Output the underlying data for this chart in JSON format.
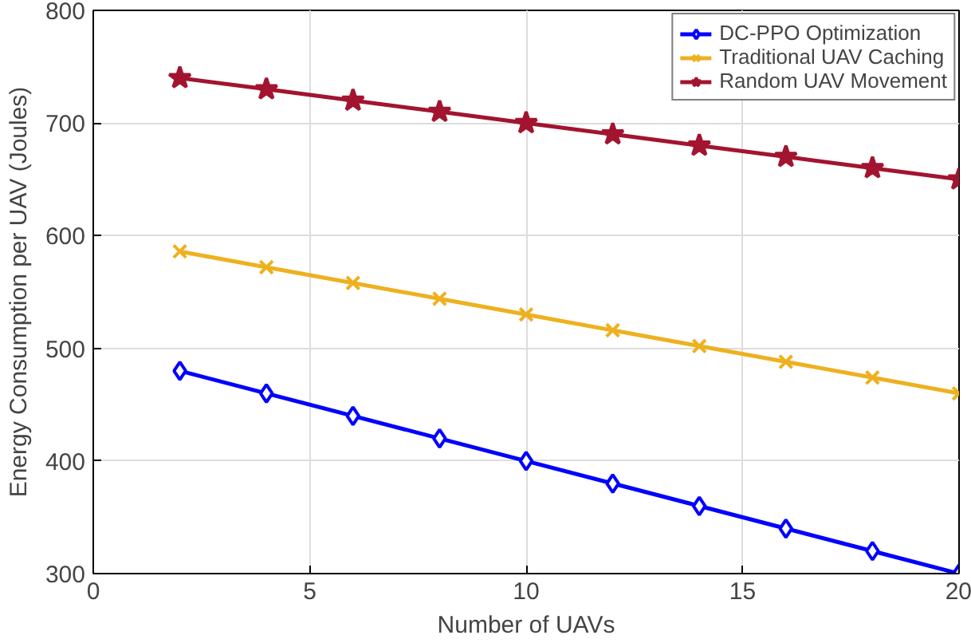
{
  "chart_data": {
    "type": "line",
    "xlabel": "Number of UAVs",
    "ylabel": "Energy Consumption per UAV (Joules)",
    "x": [
      2,
      4,
      6,
      8,
      10,
      12,
      14,
      16,
      18,
      20
    ],
    "series": [
      {
        "name": "DC-PPO Optimization",
        "color": "#0000ff",
        "marker": "diamond",
        "values": [
          480,
          460,
          440,
          420,
          400,
          380,
          360,
          340,
          320,
          300
        ]
      },
      {
        "name": "Traditional UAV Caching",
        "color": "#edb120",
        "marker": "cross",
        "values": [
          586,
          572,
          558,
          544,
          530,
          516,
          502,
          488,
          474,
          460
        ]
      },
      {
        "name": "Random UAV Movement",
        "color": "#a2142f",
        "marker": "star",
        "values": [
          740,
          730,
          720,
          710,
          700,
          690,
          680,
          670,
          660,
          650
        ]
      }
    ],
    "xlim": [
      0,
      20
    ],
    "xticks": [
      0,
      5,
      10,
      15,
      20
    ],
    "ylim": [
      300,
      800
    ],
    "yticks": [
      300,
      400,
      500,
      600,
      700,
      800
    ],
    "grid": true,
    "legend": "top right",
    "line_style": "solid"
  }
}
